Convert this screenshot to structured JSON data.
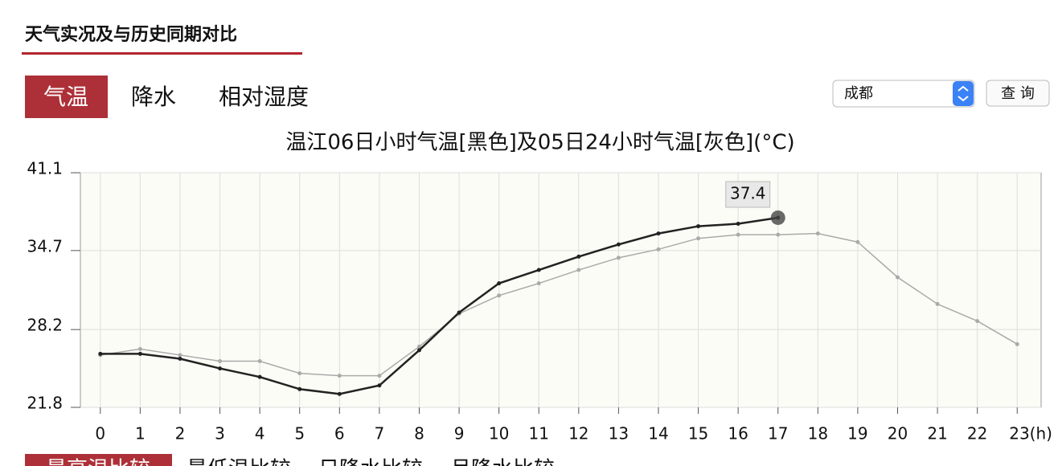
{
  "header": {
    "title": "天气实况及与历史同期对比"
  },
  "tabs": [
    "气温",
    "降水",
    "相对湿度"
  ],
  "city_select": "成都",
  "query_button": "查 询",
  "chart_data": {
    "type": "line",
    "title": "温江06日小时气温[黑色]及05日24小时气温[灰色](°C)",
    "x": [
      0,
      1,
      2,
      3,
      4,
      5,
      6,
      7,
      8,
      9,
      10,
      11,
      12,
      13,
      14,
      15,
      16,
      17,
      18,
      19,
      20,
      21,
      22,
      23
    ],
    "xlim": [
      -0.5,
      23.6
    ],
    "xticks": [
      0,
      1,
      2,
      3,
      4,
      5,
      6,
      7,
      8,
      9,
      10,
      11,
      12,
      13,
      14,
      15,
      16,
      17,
      18,
      19,
      20,
      21,
      22,
      {
        "value": 23,
        "label": "23(h)"
      }
    ],
    "ylim": [
      21.8,
      41.1
    ],
    "yticks": [
      21.8,
      28.2,
      34.7,
      41.1
    ],
    "grid": true,
    "series": [
      {
        "color": "#aaaaaa",
        "values": [
          26.1,
          26.6,
          26.1,
          25.6,
          25.6,
          24.6,
          24.4,
          24.4,
          26.8,
          29.5,
          31.0,
          32.0,
          33.1,
          34.1,
          34.8,
          35.7,
          36.0,
          36.0,
          36.1,
          35.4,
          32.5,
          30.3,
          28.9,
          27.0
        ]
      },
      {
        "color": "#222222",
        "values": [
          26.2,
          26.2,
          25.8,
          25.0,
          24.3,
          23.3,
          22.9,
          23.6,
          26.5,
          29.6,
          32.0,
          33.1,
          34.2,
          35.2,
          36.1,
          36.7,
          36.9,
          37.4,
          null,
          null,
          null,
          null,
          null,
          null
        ]
      }
    ]
  },
  "bottom_tabs": [
    "最高温比较",
    "最低温比较",
    "日降水比较",
    "月降水比较"
  ]
}
